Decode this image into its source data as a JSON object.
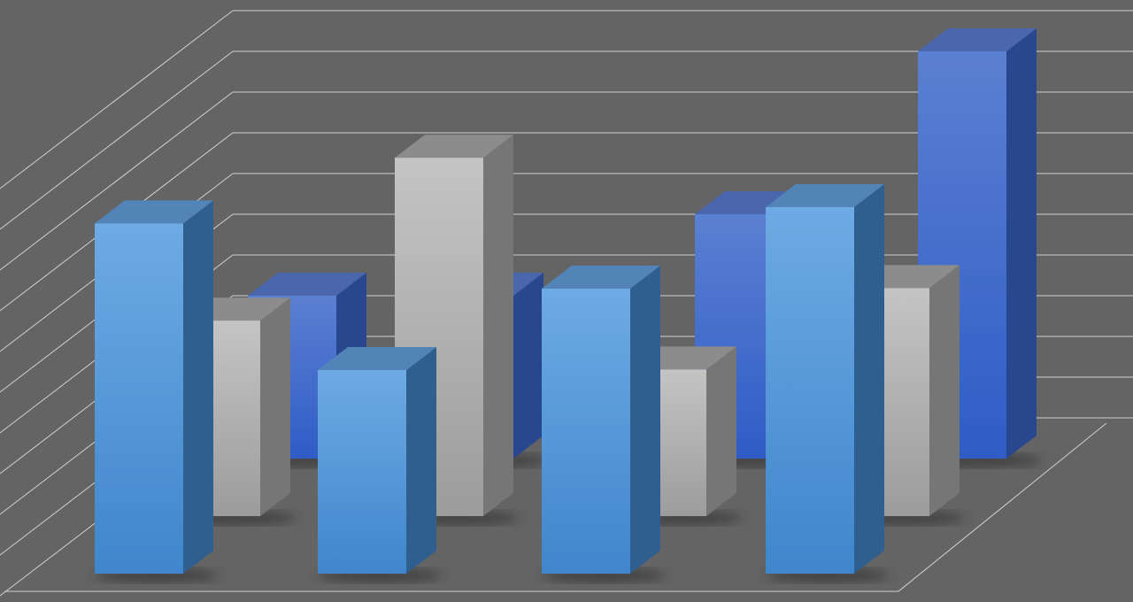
{
  "chart_data": {
    "type": "bar",
    "style": "3d-clustered",
    "title": "",
    "xlabel": "",
    "ylabel": "",
    "categories": [
      "",
      "",
      "",
      ""
    ],
    "ylim": [
      0,
      10
    ],
    "grid": true,
    "legend": "none",
    "series": [
      {
        "values": [
          4,
          4,
          6,
          10
        ],
        "color": "#3a66c8",
        "row": "back"
      },
      {
        "values": [
          4.8,
          8.8,
          3.6,
          5.6
        ],
        "color": "#b0b0b0",
        "row": "middle"
      },
      {
        "values": [
          8.6,
          5,
          7,
          9
        ],
        "color": "#5a9ad8",
        "row": "front"
      }
    ],
    "background_color": "#646464",
    "grid_color": "#d0d0d0"
  }
}
